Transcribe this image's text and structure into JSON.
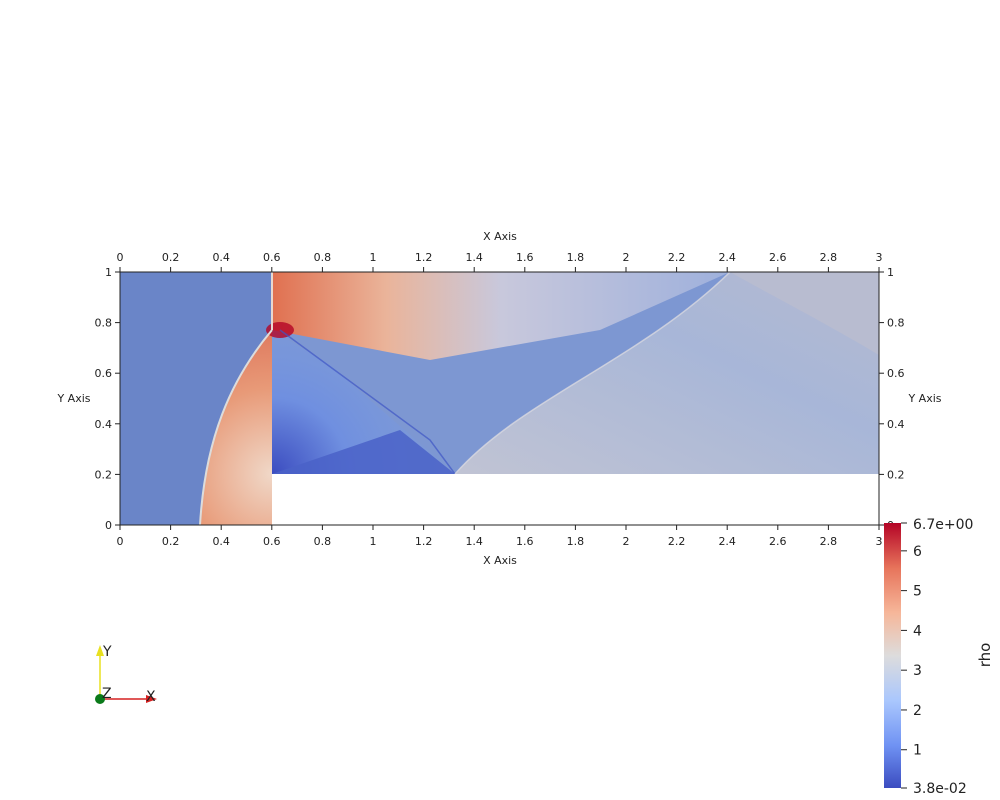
{
  "axes": {
    "x_title": "X Axis",
    "y_title": "Y Axis",
    "x_ticks": [
      "0",
      "0.2",
      "0.4",
      "0.6",
      "0.8",
      "1",
      "1.2",
      "1.4",
      "1.6",
      "1.8",
      "2",
      "2.2",
      "2.4",
      "2.6",
      "2.8",
      "3"
    ],
    "y_ticks": [
      "0",
      "0.2",
      "0.4",
      "0.6",
      "0.8",
      "1"
    ],
    "x_range": [
      0,
      3
    ],
    "y_range": [
      0,
      1
    ]
  },
  "field": {
    "name": "rho",
    "step_obstacle": {
      "x_start": 0.6,
      "x_end": 3.0,
      "y_top": 0.2
    },
    "background_value_color": "#6a85c8"
  },
  "colorbar": {
    "title": "rho",
    "min_label": "3.8e-02",
    "max_label": "6.7e+00",
    "min": 0.038,
    "max": 6.7,
    "ticks": [
      "1",
      "2",
      "3",
      "4",
      "5",
      "6"
    ],
    "colors": [
      "#3b4cc0",
      "#6f92f3",
      "#aac7fd",
      "#dddcdc",
      "#f6b79a",
      "#e7745b",
      "#b40426"
    ]
  },
  "orientation_axes": {
    "x_label": "X",
    "y_label": "Y",
    "z_label": "Z",
    "x_color": "#d62020",
    "y_color": "#e8e020",
    "z_color": "#0a7a1a"
  }
}
